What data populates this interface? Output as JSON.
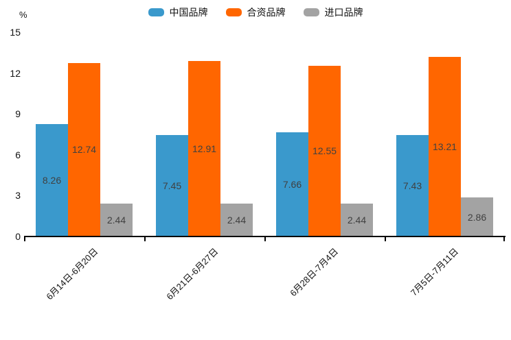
{
  "chart_data": {
    "type": "bar",
    "title": "",
    "ylabel": "%",
    "xlabel": "",
    "categories": [
      "6月14日-6月20日",
      "6月21日-6月27日",
      "6月28日-7月4日",
      "7月5日-7月11日"
    ],
    "series": [
      {
        "name": "中国品牌",
        "key": "china-brand",
        "color": "#3A99CC",
        "values": [
          8.26,
          7.45,
          7.66,
          7.43
        ]
      },
      {
        "name": "合资品牌",
        "key": "joint-venture-brand",
        "color": "#FF6600",
        "values": [
          12.74,
          12.91,
          12.55,
          13.21
        ]
      },
      {
        "name": "进口品牌",
        "key": "import-brand",
        "color": "#A3A3A3",
        "values": [
          2.44,
          2.44,
          2.44,
          2.86
        ]
      }
    ],
    "ylim": [
      0,
      15
    ],
    "yticks": [
      0,
      3,
      6,
      9,
      12,
      15
    ],
    "legend_position": "top-center",
    "grid": false,
    "bar_labels_shown": true,
    "bar_label_color": "#404040",
    "axis_color": "#000000",
    "background_color": "#FFFFFF"
  }
}
